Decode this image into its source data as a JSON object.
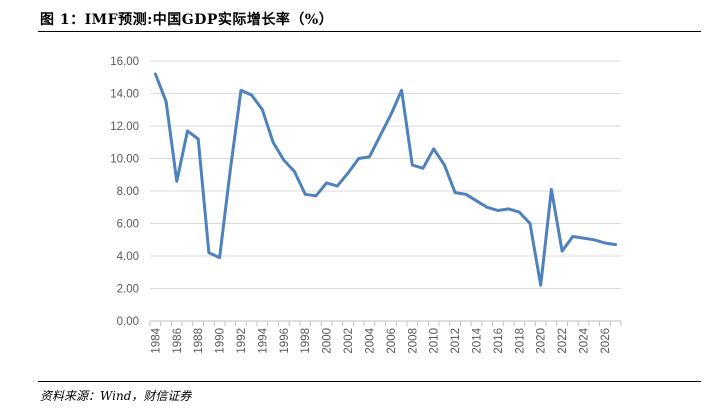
{
  "figure": {
    "title": "图 1：IMF预测:中国GDP实际增长率（%）",
    "source": "资料来源：Wind，财信证券"
  },
  "chart_data": {
    "type": "line",
    "title": "",
    "xlabel": "",
    "ylabel": "",
    "ylim": [
      0,
      16
    ],
    "y_ticks": [
      "0.00",
      "2.00",
      "4.00",
      "6.00",
      "8.00",
      "10.00",
      "12.00",
      "14.00",
      "16.00"
    ],
    "x_ticks": [
      "1984",
      "1986",
      "1988",
      "1990",
      "1992",
      "1994",
      "1996",
      "1998",
      "2000",
      "2002",
      "2004",
      "2006",
      "2008",
      "2010",
      "2012",
      "2014",
      "2016",
      "2018",
      "2020",
      "2022",
      "2024",
      "2026"
    ],
    "grid": true,
    "legend": "none",
    "line_color": "#4f81bd",
    "series": [
      {
        "x": [
          1984,
          1985,
          1986,
          1987,
          1988,
          1989,
          1990,
          1991,
          1992,
          1993,
          1994,
          1995,
          1996,
          1997,
          1998,
          1999,
          2000,
          2001,
          2002,
          2003,
          2004,
          2005,
          2006,
          2007,
          2008,
          2009,
          2010,
          2011,
          2012,
          2013,
          2014,
          2015,
          2016,
          2017,
          2018,
          2019,
          2020,
          2021,
          2022,
          2023,
          2024,
          2025,
          2026,
          2027
        ],
        "values": [
          15.2,
          13.5,
          8.6,
          11.7,
          11.2,
          4.2,
          3.9,
          9.3,
          14.2,
          13.9,
          13.0,
          11.0,
          9.9,
          9.2,
          7.8,
          7.7,
          8.5,
          8.3,
          9.1,
          10.0,
          10.1,
          11.4,
          12.7,
          14.2,
          9.6,
          9.4,
          10.6,
          9.6,
          7.9,
          7.8,
          7.4,
          7.0,
          6.8,
          6.9,
          6.7,
          6.0,
          2.2,
          8.1,
          4.3,
          5.2,
          5.1,
          5.0,
          4.8,
          4.7
        ]
      }
    ]
  }
}
